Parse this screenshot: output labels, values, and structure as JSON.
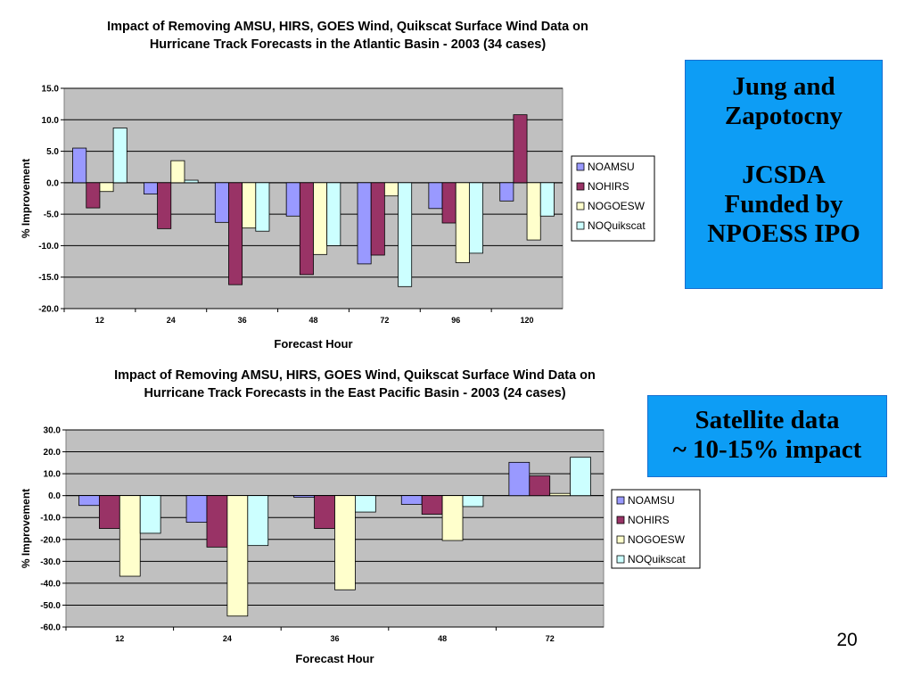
{
  "callouts": {
    "top": "Jung and \nZapotocny\n\nJCSDA\nFunded by \nNPOESS IPO",
    "bottom": "Satellite data\n~ 10-15% impact"
  },
  "page_number": "20",
  "colors": {
    "NOAMSU": "#9999ff",
    "NOHIRS": "#993366",
    "NOGOESW": "#ffffcc",
    "NOQuikscat": "#ccffff",
    "plot_bg": "#c0c0c0",
    "callout_bg": "#0d9df5"
  },
  "chart_data": [
    {
      "type": "bar",
      "title": "Impact of Removing AMSU, HIRS, GOES Wind, Quikscat Surface Wind Data on\nHurricane Track Forecasts in the Atlantic Basin - 2003 (34 cases)",
      "xlabel": "Forecast Hour",
      "ylabel": "% Improvement",
      "categories": [
        "12",
        "24",
        "36",
        "48",
        "72",
        "96",
        "120"
      ],
      "ylim": [
        -20,
        15
      ],
      "yticks": [
        "15.0",
        "10.0",
        "5.0",
        "0.0",
        "-5.0",
        "-10.0",
        "-15.0",
        "-20.0"
      ],
      "grid": true,
      "legend_position": "right",
      "series": [
        {
          "name": "NOAMSU",
          "values": [
            5.5,
            -1.8,
            -6.3,
            -5.3,
            -12.9,
            -4.1,
            -2.9
          ]
        },
        {
          "name": "NOHIRS",
          "values": [
            -4.0,
            -7.3,
            -16.2,
            -14.6,
            -11.5,
            -6.4,
            10.8
          ]
        },
        {
          "name": "NOGOESW",
          "values": [
            -1.4,
            3.5,
            -7.2,
            -11.4,
            -2.1,
            -12.7,
            -9.1
          ]
        },
        {
          "name": "NOQuikscat",
          "values": [
            8.7,
            0.4,
            -7.7,
            -10.0,
            -16.5,
            -11.2,
            -5.3
          ]
        }
      ]
    },
    {
      "type": "bar",
      "title": "Impact of Removing AMSU, HIRS, GOES Wind, Quikscat Surface Wind Data on\nHurricane Track Forecasts in the East Pacific Basin - 2003 (24 cases)",
      "xlabel": "Forecast Hour",
      "ylabel": "% Improvement",
      "categories": [
        "12",
        "24",
        "36",
        "48",
        "72"
      ],
      "ylim": [
        -60,
        30
      ],
      "yticks": [
        "30.0",
        "20.0",
        "10.0",
        "0.0",
        "-10.0",
        "-20.0",
        "-30.0",
        "-40.0",
        "-50.0",
        "-60.0"
      ],
      "grid": true,
      "legend_position": "right",
      "series": [
        {
          "name": "NOAMSU",
          "values": [
            -4.5,
            -12.2,
            -0.8,
            -4.0,
            15.2
          ]
        },
        {
          "name": "NOHIRS",
          "values": [
            -15.0,
            -23.5,
            -15.0,
            -8.5,
            9.0
          ]
        },
        {
          "name": "NOGOESW",
          "values": [
            -36.8,
            -55.0,
            -43.0,
            -20.5,
            1.0
          ]
        },
        {
          "name": "NOQuikscat",
          "values": [
            -17.2,
            -22.8,
            -7.5,
            -5.0,
            17.5
          ]
        }
      ]
    }
  ]
}
